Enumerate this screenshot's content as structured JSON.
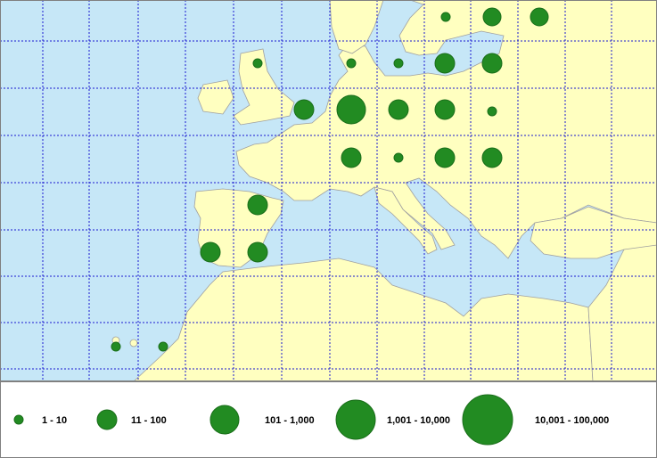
{
  "legend": {
    "items": [
      "1 - 10",
      "11 - 100",
      "101 - 1,000",
      "1,001 - 10,000",
      "10,001 - 100,000"
    ]
  }
}
